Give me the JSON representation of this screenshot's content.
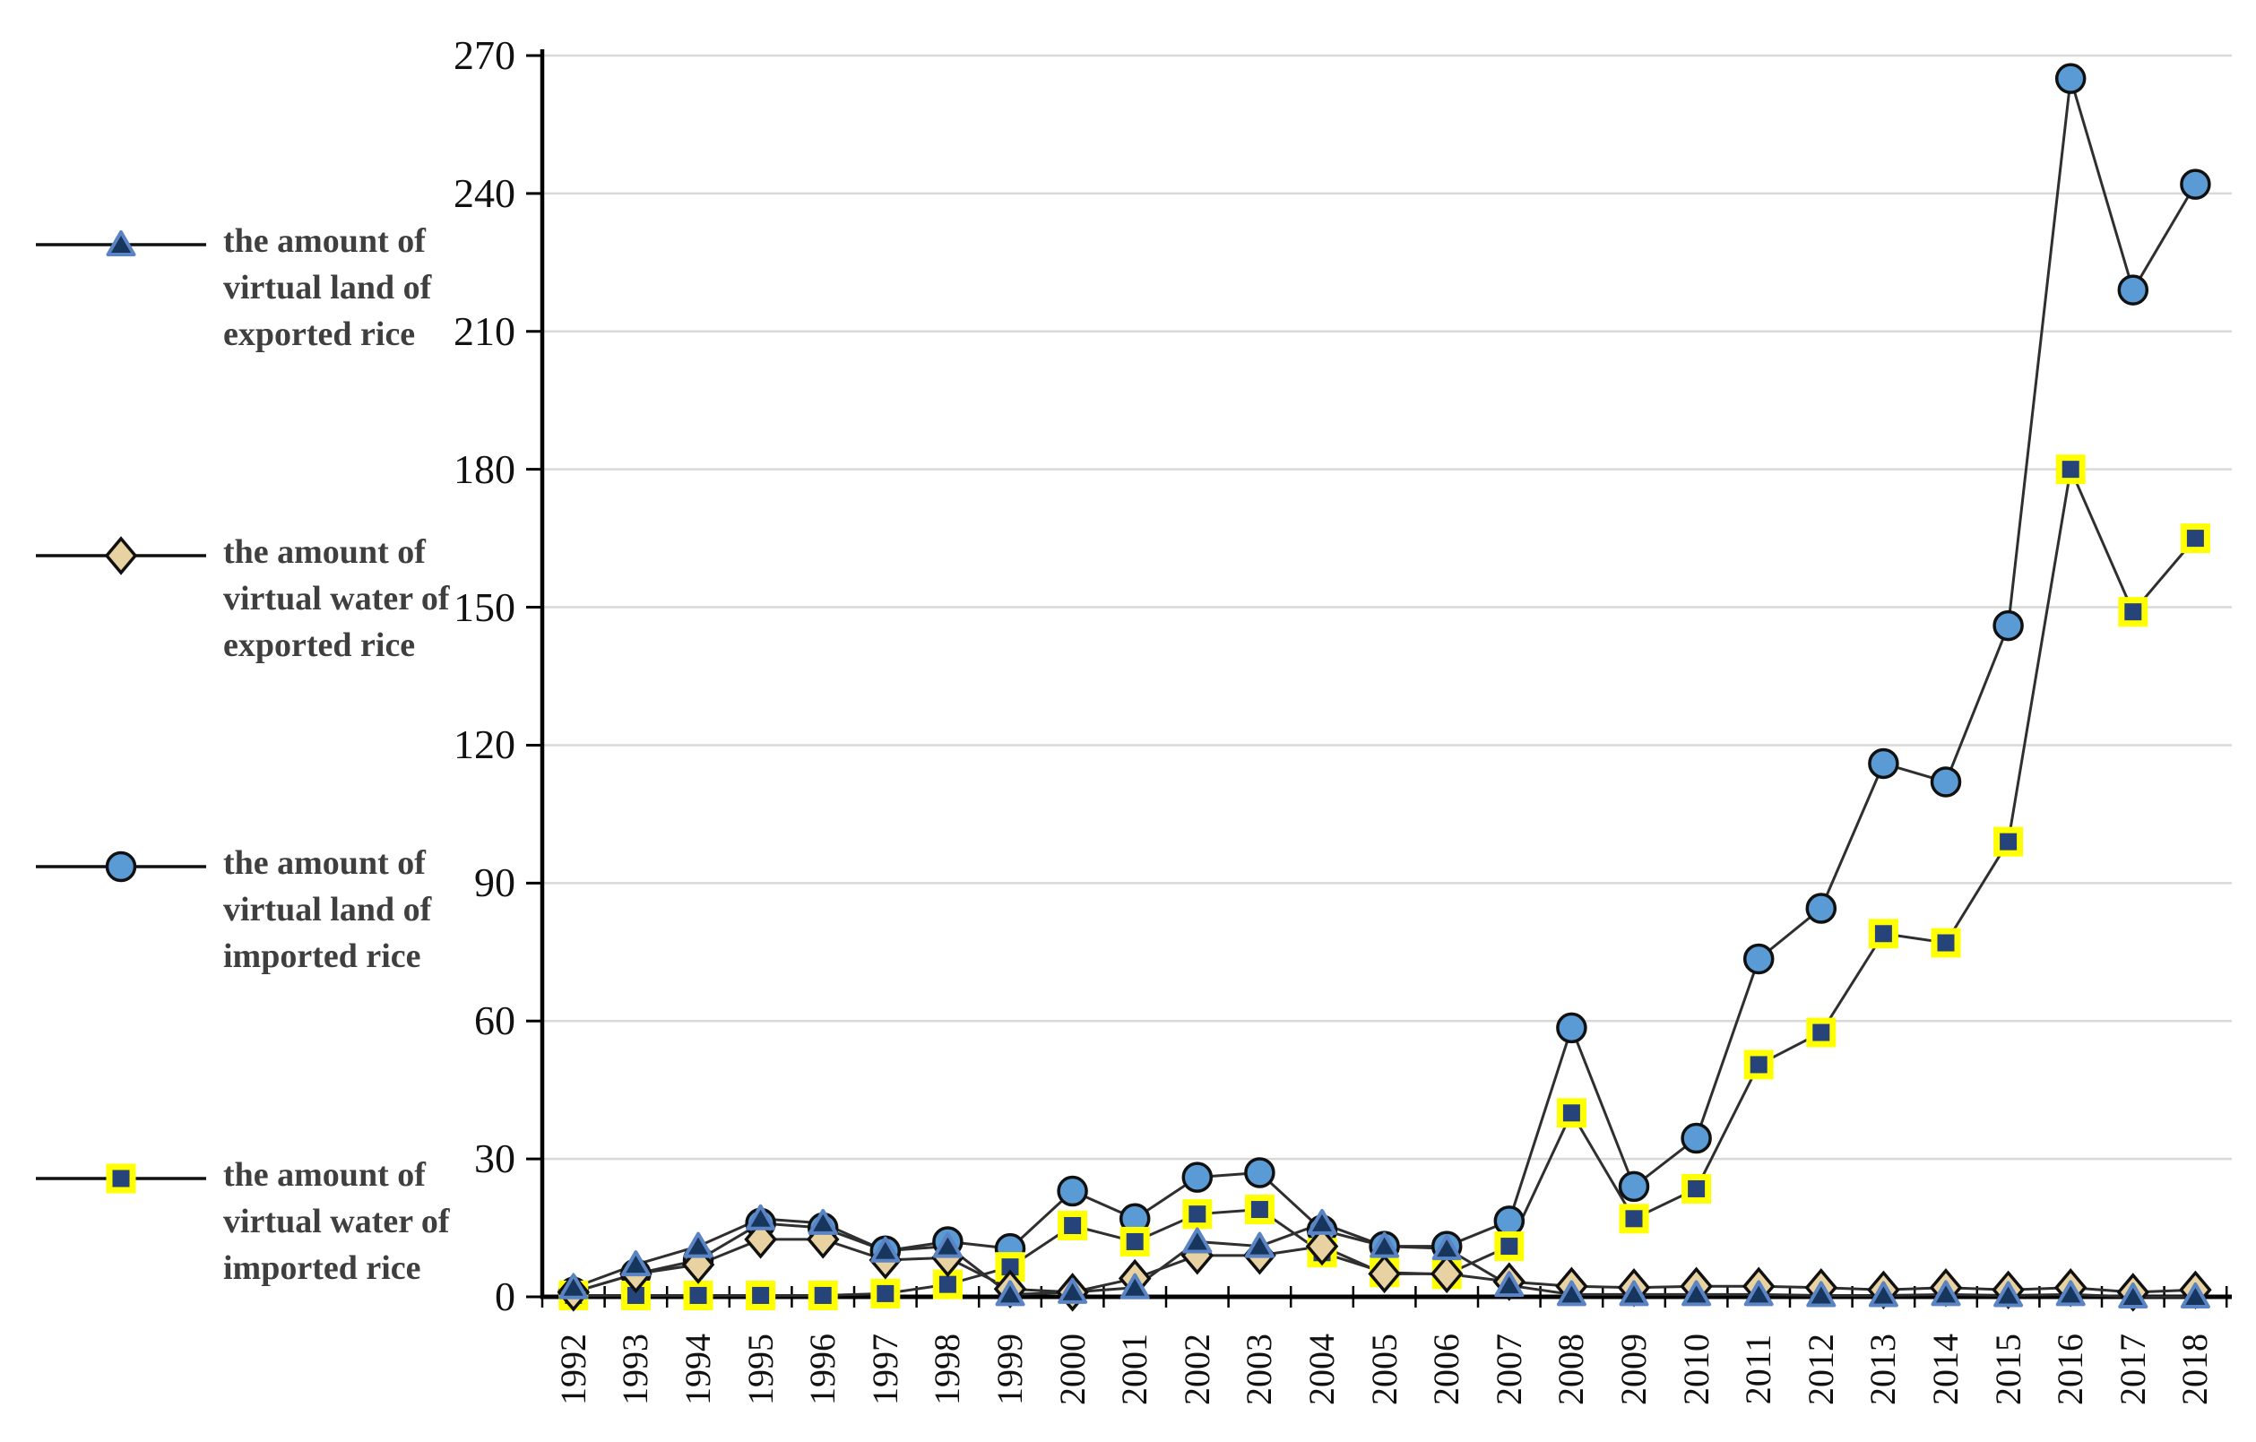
{
  "legend": {
    "items": [
      {
        "label": "the amount of virtual land of exported rice"
      },
      {
        "label": "the amount of virtual water of exported rice"
      },
      {
        "label": "the amount of virtual land of imported rice"
      },
      {
        "label": "the amount of virtual water of imported rice"
      }
    ]
  },
  "chart_data": {
    "type": "line",
    "title": "",
    "xlabel": "",
    "ylabel": "",
    "categories": [
      "1992",
      "1993",
      "1994",
      "1995",
      "1996",
      "1997",
      "1998",
      "1999",
      "2000",
      "2001",
      "2002",
      "2003",
      "2004",
      "2005",
      "2006",
      "2007",
      "2008",
      "2009",
      "2010",
      "2011",
      "2012",
      "2013",
      "2014",
      "2015",
      "2016",
      "2017",
      "2018"
    ],
    "ylim": [
      0,
      270
    ],
    "ytick_step": 30,
    "yticks": [
      0,
      30,
      60,
      90,
      120,
      150,
      180,
      210,
      240,
      270
    ],
    "grid": true,
    "legend_position": "left",
    "line_color": "#2f2f2f",
    "gridline_color": "#d9d9d9",
    "axis_color": "#000000",
    "series": [
      {
        "name": "the amount of virtual land of exported rice",
        "marker": "triangle",
        "fill": "#17365d",
        "stroke": "#5b84c4",
        "values": [
          2,
          7,
          11,
          17,
          16,
          10,
          11,
          0.5,
          1,
          2,
          12,
          11,
          16,
          11,
          10.5,
          2.5,
          0.5,
          0.5,
          0.5,
          0.5,
          0.3,
          0.3,
          0.5,
          0.3,
          0.5,
          0,
          0
        ]
      },
      {
        "name": "the amount of virtual water of exported rice",
        "marker": "diamond",
        "fill": "#e9d2a2",
        "stroke": "#111111",
        "values": [
          1,
          5,
          7,
          12.5,
          12.5,
          8,
          8.5,
          1.7,
          1,
          4,
          9,
          9,
          11,
          5,
          5,
          3.3,
          2.3,
          2,
          2.3,
          2.3,
          2,
          1.5,
          2,
          1.5,
          2,
          1,
          1.5
        ]
      },
      {
        "name": "the amount of virtual land of imported rice",
        "marker": "circle",
        "fill": "#5b9bd5",
        "stroke": "#111111",
        "values": [
          1,
          5,
          8,
          16,
          15,
          10,
          12,
          10.5,
          23,
          17,
          26,
          27,
          14.5,
          11,
          11,
          16.5,
          58.5,
          24,
          34.5,
          73.5,
          84.5,
          116,
          112,
          146,
          265,
          219,
          242
        ]
      },
      {
        "name": "the amount of virtual water of imported rice",
        "marker": "square",
        "fill": "#26437a",
        "stroke": "#ffff00",
        "values": [
          0.3,
          0.3,
          0.3,
          0.3,
          0.3,
          0.7,
          2.7,
          6.5,
          15.5,
          12,
          18,
          19,
          9.6,
          5.3,
          4.9,
          11,
          40,
          17,
          23.5,
          50.5,
          57.5,
          79,
          77,
          99,
          180,
          149,
          165
        ]
      }
    ]
  }
}
